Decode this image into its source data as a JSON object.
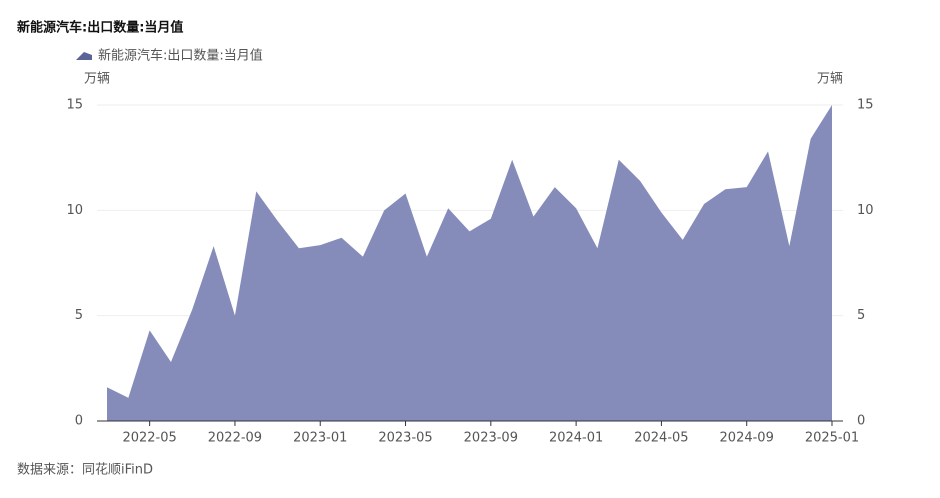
{
  "chart_data": {
    "type": "area",
    "title": "新能源汽车:出口数量:当月值",
    "y_unit": "万辆",
    "y2_unit": "万辆",
    "source": "数据来源：同花顺iFinD",
    "categories": [
      null,
      null,
      "2022-05",
      null,
      null,
      null,
      "2022-09",
      null,
      null,
      null,
      "2023-01",
      null,
      null,
      null,
      "2023-05",
      null,
      null,
      null,
      "2023-09",
      null,
      null,
      null,
      "2024-01",
      null,
      null,
      null,
      "2024-05",
      null,
      null,
      null,
      "2024-09",
      null,
      null,
      null,
      "2025-01"
    ],
    "series": [
      {
        "name": "新能源汽车:出口数量:当月值",
        "color": "#858cba",
        "values": [
          1.6,
          1.1,
          4.3,
          2.8,
          5.3,
          8.3,
          5.0,
          10.9,
          9.5,
          8.2,
          8.35,
          8.7,
          7.8,
          10.0,
          10.8,
          7.8,
          10.1,
          9.0,
          9.6,
          12.4,
          9.7,
          11.1,
          10.1,
          8.2,
          12.4,
          11.4,
          9.9,
          8.6,
          10.3,
          11.0,
          11.1,
          12.8,
          8.3,
          13.4,
          15.0
        ]
      }
    ],
    "ylim": [
      0,
      15
    ],
    "yticks": [
      0,
      5,
      10,
      15
    ],
    "y2lim": [
      0,
      15
    ],
    "y2ticks": [
      0,
      5,
      10,
      15
    ],
    "grid": true
  }
}
